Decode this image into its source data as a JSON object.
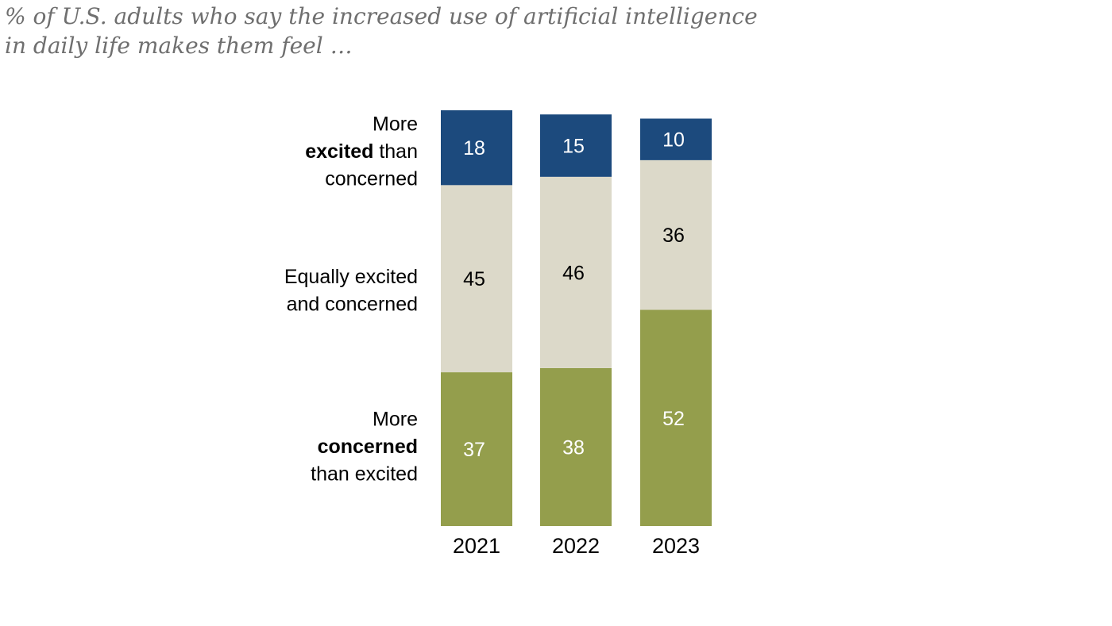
{
  "subtitle": {
    "line1": "% of U.S. adults who say the increased use of artificial intelligence",
    "line2": "in daily life makes them feel …"
  },
  "chart_data": {
    "type": "bar",
    "stacked": true,
    "orientation": "vertical",
    "unit": "%",
    "categories": [
      "2021",
      "2022",
      "2023"
    ],
    "series": [
      {
        "name": "More excited than concerned",
        "label_lines": [
          [
            "More"
          ],
          [
            "excited",
            " than"
          ],
          [
            "concerned"
          ]
        ],
        "bold_word": "excited",
        "color": "#1c4a7d",
        "text_color": "#ffffff",
        "values": [
          18,
          15,
          10
        ]
      },
      {
        "name": "Equally excited and concerned",
        "label_lines": [
          [
            "Equally excited"
          ],
          [
            "and concerned"
          ]
        ],
        "bold_word": "",
        "color": "#dcd9c9",
        "text_color": "#000000",
        "values": [
          45,
          46,
          36
        ]
      },
      {
        "name": "More concerned than excited",
        "label_lines": [
          [
            "More"
          ],
          [
            "concerned"
          ],
          [
            "than excited"
          ]
        ],
        "bold_word": "concerned",
        "color": "#949e4c",
        "text_color": "#ffffff",
        "values": [
          37,
          38,
          52
        ]
      }
    ]
  }
}
